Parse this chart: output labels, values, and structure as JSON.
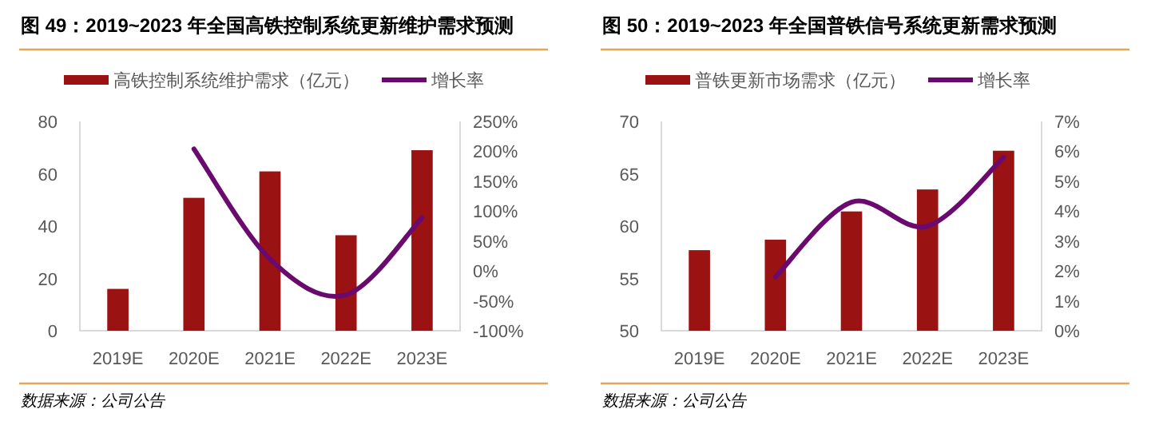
{
  "chart_data": [
    {
      "type": "bar",
      "title": "图 49：2019~2023 年全国高铁控制系统更新维护需求预测",
      "categories": [
        "2019E",
        "2020E",
        "2021E",
        "2022E",
        "2023E"
      ],
      "series": [
        {
          "name": "高铁控制系统维护需求（亿元）",
          "color": "#9b1212",
          "values": [
            16,
            50.8,
            60.9,
            36.5,
            69
          ]
        },
        {
          "name": "增长率",
          "type": "line",
          "axis": "y2",
          "color": "#6b0a6e",
          "values": [
            null,
            204,
            20,
            -40,
            89
          ]
        }
      ],
      "ylim": [
        0,
        80
      ],
      "yticks": [
        0,
        20,
        40,
        60,
        80
      ],
      "y2lim": [
        -100,
        250
      ],
      "y2ticks": [
        {
          "value": -100,
          "label": "-100%"
        },
        {
          "value": -50,
          "label": "-50%"
        },
        {
          "value": 0,
          "label": "0%"
        },
        {
          "value": 50,
          "label": "50%"
        },
        {
          "value": 100,
          "label": "100%"
        },
        {
          "value": 150,
          "label": "150%"
        },
        {
          "value": 200,
          "label": "200%"
        },
        {
          "value": 250,
          "label": "250%"
        }
      ],
      "legend": "top",
      "annotations": [
        "数据来源：公司公告"
      ]
    },
    {
      "type": "bar",
      "title": "图 50：2019~2023 年全国普铁信号系统更新需求预测",
      "categories": [
        "2019E",
        "2020E",
        "2021E",
        "2022E",
        "2023E"
      ],
      "series": [
        {
          "name": "普铁更新市场需求（亿元）",
          "color": "#9b1212",
          "values": [
            57.7,
            58.7,
            61.4,
            63.5,
            67.2
          ]
        },
        {
          "name": "增长率",
          "type": "line",
          "axis": "y2",
          "color": "#6b0a6e",
          "values": [
            null,
            1.8,
            4.3,
            3.5,
            5.8
          ]
        }
      ],
      "ylim": [
        50,
        70
      ],
      "yticks": [
        50,
        55,
        60,
        65,
        70
      ],
      "y2lim": [
        0,
        7
      ],
      "y2ticks": [
        {
          "value": 0,
          "label": "0%"
        },
        {
          "value": 1,
          "label": "1%"
        },
        {
          "value": 2,
          "label": "2%"
        },
        {
          "value": 3,
          "label": "3%"
        },
        {
          "value": 4,
          "label": "4%"
        },
        {
          "value": 5,
          "label": "5%"
        },
        {
          "value": 6,
          "label": "6%"
        },
        {
          "value": 7,
          "label": "7%"
        }
      ],
      "legend": "top",
      "annotations": [
        "数据来源：公司公告"
      ]
    }
  ]
}
